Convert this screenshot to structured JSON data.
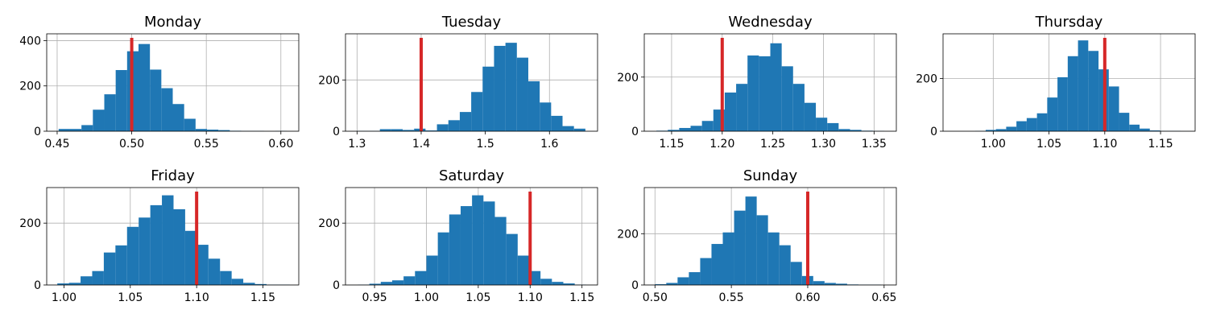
{
  "colors": {
    "bar": "#1f77b4",
    "reference_line": "#d62728"
  },
  "chart_data": [
    {
      "type": "bar",
      "title": "Monday",
      "grid": true,
      "xlim": [
        0.443,
        0.612
      ],
      "ylim": [
        0,
        430
      ],
      "xticks": [
        "0.45",
        "0.50",
        "0.55",
        "0.60"
      ],
      "xtick_values": [
        0.45,
        0.5,
        0.55,
        0.6
      ],
      "yticks": [
        "0",
        "200",
        "400"
      ],
      "ytick_values": [
        0,
        200,
        400
      ],
      "bin_start": 0.451,
      "bin_width": 0.00765,
      "values": [
        10,
        10,
        27,
        95,
        163,
        270,
        353,
        385,
        272,
        190,
        120,
        55,
        10,
        7,
        5,
        2,
        1,
        1,
        0,
        1
      ],
      "reference": 0.5
    },
    {
      "type": "bar",
      "title": "Tuesday",
      "grid": true,
      "xlim": [
        1.282,
        1.675
      ],
      "ylim": [
        0,
        380
      ],
      "xticks": [
        "1.3",
        "1.4",
        "1.5",
        "1.6"
      ],
      "xtick_values": [
        1.3,
        1.4,
        1.5,
        1.6
      ],
      "yticks": [
        "0",
        "200"
      ],
      "ytick_values": [
        0,
        200
      ],
      "bin_start": 1.3,
      "bin_width": 0.0178,
      "values": [
        1,
        1,
        8,
        8,
        5,
        10,
        3,
        27,
        43,
        75,
        153,
        252,
        333,
        345,
        287,
        195,
        112,
        60,
        20,
        10
      ],
      "reference": 1.4
    },
    {
      "type": "bar",
      "title": "Wednesday",
      "grid": true,
      "xlim": [
        1.123,
        1.372
      ],
      "ylim": [
        0,
        360
      ],
      "xticks": [
        "1.15",
        "1.20",
        "1.25",
        "1.30",
        "1.35"
      ],
      "xtick_values": [
        1.15,
        1.2,
        1.25,
        1.3,
        1.35
      ],
      "yticks": [
        "0",
        "200"
      ],
      "ytick_values": [
        0,
        200
      ],
      "bin_start": 1.135,
      "bin_width": 0.01125,
      "values": [
        2,
        5,
        12,
        20,
        38,
        80,
        143,
        175,
        280,
        277,
        325,
        240,
        175,
        105,
        50,
        30,
        8,
        5,
        2,
        1
      ],
      "reference": 1.2
    },
    {
      "type": "bar",
      "title": "Thursday",
      "grid": true,
      "xlim": [
        0.955,
        1.181
      ],
      "ylim": [
        0,
        370
      ],
      "xticks": [
        "1.00",
        "1.05",
        "1.10",
        "1.15"
      ],
      "xtick_values": [
        1.0,
        1.05,
        1.1,
        1.15
      ],
      "yticks": [
        "0",
        "200"
      ],
      "ytick_values": [
        0,
        200
      ],
      "bin_start": 0.984,
      "bin_width": 0.0092,
      "values": [
        1,
        5,
        8,
        17,
        38,
        50,
        68,
        128,
        205,
        285,
        345,
        305,
        235,
        170,
        70,
        25,
        10,
        3,
        1,
        1
      ],
      "reference": 1.1
    },
    {
      "type": "bar",
      "title": "Friday",
      "grid": true,
      "xlim": [
        0.987,
        1.177
      ],
      "ylim": [
        0,
        315
      ],
      "xticks": [
        "1.00",
        "1.05",
        "1.10",
        "1.15"
      ],
      "xtick_values": [
        1.0,
        1.05,
        1.1,
        1.15
      ],
      "yticks": [
        "0",
        "200"
      ],
      "ytick_values": [
        0,
        200
      ],
      "bin_start": 0.995,
      "bin_width": 0.00876,
      "values": [
        5,
        7,
        28,
        45,
        105,
        128,
        188,
        218,
        258,
        290,
        245,
        175,
        130,
        85,
        45,
        20,
        7,
        3,
        1,
        1
      ],
      "reference": 1.1
    },
    {
      "type": "bar",
      "title": "Saturday",
      "grid": true,
      "xlim": [
        0.922,
        1.165
      ],
      "ylim": [
        0,
        315
      ],
      "xticks": [
        "0.95",
        "1.00",
        "1.05",
        "1.10",
        "1.15"
      ],
      "xtick_values": [
        0.95,
        1.0,
        1.05,
        1.1,
        1.15
      ],
      "yticks": [
        "0",
        "200"
      ],
      "ytick_values": [
        0,
        200
      ],
      "bin_start": 0.934,
      "bin_width": 0.011,
      "values": [
        1,
        4,
        10,
        15,
        28,
        45,
        95,
        170,
        228,
        255,
        290,
        270,
        220,
        165,
        95,
        45,
        20,
        10,
        5,
        1
      ],
      "reference": 1.1
    },
    {
      "type": "bar",
      "title": "Sunday",
      "grid": true,
      "xlim": [
        0.493,
        0.658
      ],
      "ylim": [
        0,
        380
      ],
      "xticks": [
        "0.50",
        "0.55",
        "0.60",
        "0.65"
      ],
      "xtick_values": [
        0.5,
        0.55,
        0.6,
        0.65
      ],
      "yticks": [
        "0",
        "200"
      ],
      "ytick_values": [
        0,
        200
      ],
      "bin_start": 0.5,
      "bin_width": 0.0074,
      "values": [
        3,
        8,
        30,
        50,
        105,
        160,
        205,
        290,
        345,
        272,
        205,
        155,
        90,
        35,
        15,
        8,
        5,
        2,
        1,
        1
      ],
      "reference": 0.6
    }
  ]
}
